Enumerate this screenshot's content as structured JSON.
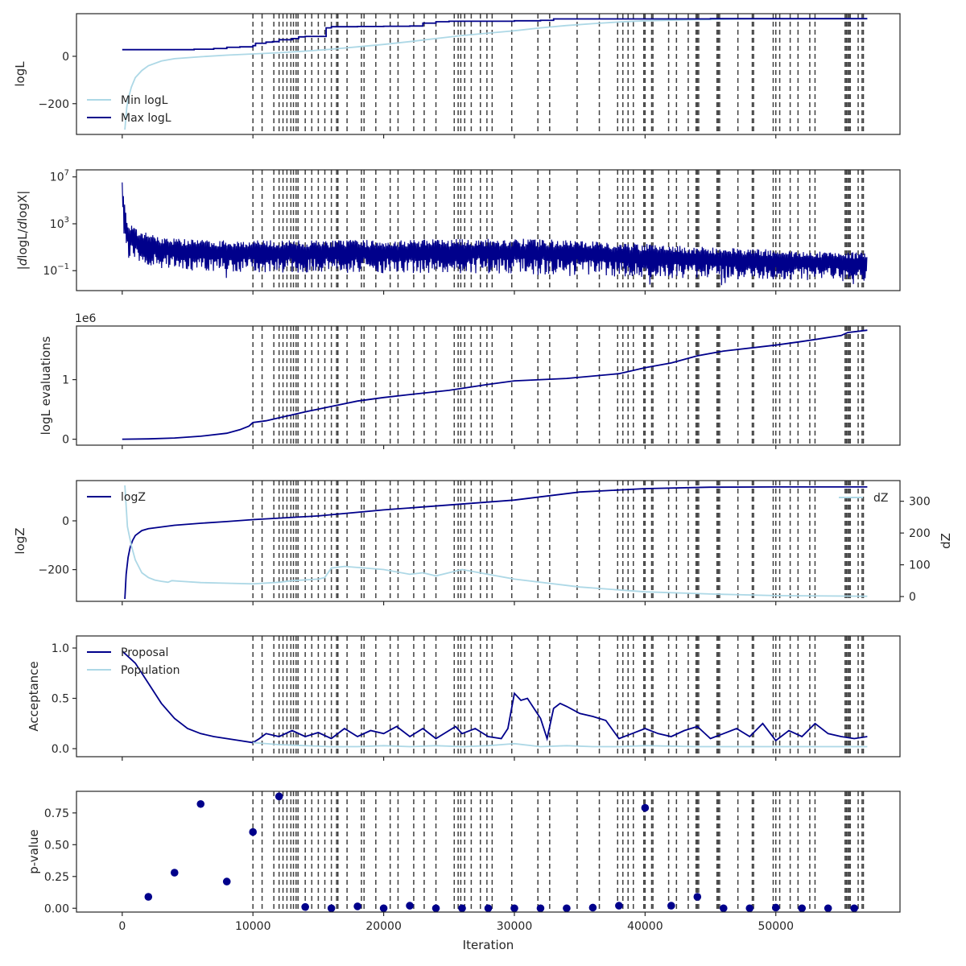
{
  "chart_data": [
    {
      "type": "line",
      "ylabel": "logL",
      "xlim": [
        -3500,
        59500
      ],
      "ylim": [
        -330,
        180
      ],
      "yticks": [
        {
          "v": 0,
          "label": "0"
        },
        {
          "v": -200,
          "label": "−200"
        }
      ],
      "legend": "lower-left",
      "series": [
        {
          "name": "Min logL",
          "color": "#add8e6",
          "x": [
            200,
            350,
            500,
            700,
            1000,
            1500,
            2000,
            3000,
            4000,
            6000,
            8000,
            10000,
            12000,
            14000,
            16000,
            18000,
            20000,
            22000,
            24000,
            26000,
            28000,
            30000,
            32000,
            34000,
            36000,
            38000,
            40000,
            44000,
            48000,
            52000,
            56000,
            57000
          ],
          "y": [
            -310,
            -215,
            -170,
            -130,
            -90,
            -60,
            -40,
            -20,
            -10,
            -2,
            5,
            10,
            15,
            22,
            30,
            40,
            50,
            62,
            75,
            88,
            98,
            108,
            120,
            130,
            138,
            145,
            150,
            155,
            158,
            158,
            159,
            159
          ]
        },
        {
          "name": "Max logL",
          "color": "#00008b",
          "x": [
            0,
            5000,
            5500,
            7000,
            8000,
            9000,
            10000,
            10200,
            11000,
            11500,
            12000,
            13000,
            13500,
            14000,
            15000,
            15600,
            16000,
            18000,
            20000,
            22000,
            23000,
            24000,
            25000,
            30000,
            32000,
            33000,
            40000,
            45000,
            57000
          ],
          "y": [
            28,
            28,
            30,
            33,
            38,
            40,
            45,
            55,
            60,
            62,
            70,
            75,
            82,
            84,
            84,
            120,
            125,
            126,
            127,
            128,
            140,
            146,
            148,
            150,
            152,
            158,
            158,
            159,
            159
          ]
        }
      ]
    },
    {
      "type": "line",
      "ylabel": "|dlogL/dlogX|",
      "ylabel_parts": [
        "|",
        "d",
        "logL",
        "/",
        "d",
        "logX",
        "|"
      ],
      "ylabel_italic": [
        false,
        true,
        false,
        false,
        true,
        false,
        false
      ],
      "yscale": "log",
      "xlim": [
        -3500,
        59500
      ],
      "ylim": [
        -2.7,
        7.6
      ],
      "yticks": [
        {
          "v": 7,
          "label": "10",
          "exp": "7"
        },
        {
          "v": 3,
          "label": "10",
          "exp": "3"
        },
        {
          "v": -1,
          "label": "10",
          "exp": "−1"
        }
      ],
      "series": [
        {
          "name": "",
          "color": "#00008b",
          "envelope": {
            "x": [
              0,
              100,
              200,
              400,
              600,
              1000,
              2000,
              3000,
              5000,
              8000,
              10000,
              15000,
              20000,
              25000,
              30000,
              35000,
              40000,
              45000,
              50000,
              55000,
              57000
            ],
            "upper": [
              7.3,
              6.0,
              4.5,
              3.3,
              3.0,
              2.6,
              2.2,
              1.9,
              1.7,
              1.6,
              1.6,
              1.6,
              1.65,
              1.7,
              1.75,
              1.6,
              1.3,
              1.0,
              0.8,
              0.6,
              0.55
            ],
            "lower": [
              3.5,
              2.5,
              1.5,
              0.5,
              0.0,
              -0.3,
              -0.6,
              -0.8,
              -1.0,
              -1.1,
              -1.2,
              -1.2,
              -1.2,
              -1.2,
              -1.3,
              -1.4,
              -1.6,
              -1.7,
              -1.8,
              -1.9,
              -1.9
            ]
          }
        }
      ]
    },
    {
      "type": "line",
      "ylabel": "logL evaluations",
      "offset_text": "1e6",
      "xlim": [
        -3500,
        59500
      ],
      "ylim": [
        -0.1,
        1.9
      ],
      "yticks": [
        {
          "v": 1,
          "label": "1"
        },
        {
          "v": 0,
          "label": "0"
        }
      ],
      "series": [
        {
          "name": "",
          "color": "#00008b",
          "x": [
            0,
            2000,
            4000,
            6000,
            8000,
            9000,
            9700,
            10000,
            11000,
            12000,
            14000,
            16000,
            18000,
            20000,
            22000,
            25000,
            28000,
            30000,
            34000,
            38000,
            40000,
            42000,
            44000,
            46000,
            50000,
            52000,
            55000,
            55500,
            57000
          ],
          "y": [
            0.0,
            0.005,
            0.02,
            0.05,
            0.1,
            0.16,
            0.22,
            0.28,
            0.31,
            0.36,
            0.46,
            0.55,
            0.64,
            0.7,
            0.75,
            0.82,
            0.92,
            0.98,
            1.02,
            1.1,
            1.2,
            1.28,
            1.4,
            1.48,
            1.58,
            1.64,
            1.74,
            1.79,
            1.83
          ]
        }
      ]
    },
    {
      "type": "line",
      "ylabel": "logZ",
      "ylabel_right": "dZ",
      "xlim": [
        -3500,
        59500
      ],
      "ylim": [
        -330,
        165
      ],
      "ylim_right": [
        -15,
        365
      ],
      "yticks": [
        {
          "v": 0,
          "label": "0"
        },
        {
          "v": -200,
          "label": "−200"
        }
      ],
      "yticks_right": [
        {
          "v": 0,
          "label": "0"
        },
        {
          "v": 100,
          "label": "100"
        },
        {
          "v": 200,
          "label": "200"
        },
        {
          "v": 300,
          "label": "300"
        }
      ],
      "legend": "upper-left",
      "legend_right": "upper-right",
      "series": [
        {
          "name": "logZ",
          "color": "#00008b",
          "axis": "left",
          "x": [
            200,
            300,
            450,
            600,
            800,
            1000,
            1500,
            2000,
            3000,
            4000,
            6000,
            8000,
            10000,
            15000,
            20000,
            25000,
            30000,
            35000,
            40000,
            45000,
            50000,
            57000
          ],
          "y": [
            -320,
            -220,
            -150,
            -110,
            -80,
            -60,
            -40,
            -32,
            -25,
            -18,
            -10,
            -3,
            5,
            20,
            45,
            65,
            85,
            118,
            132,
            138,
            139,
            139
          ]
        },
        {
          "name": "dZ",
          "color": "#add8e6",
          "axis": "right",
          "x": [
            200,
            400,
            700,
            1000,
            1500,
            2000,
            2500,
            3000,
            3500,
            3800,
            4500,
            6000,
            8000,
            10000,
            12000,
            13000,
            15000,
            15500,
            16000,
            17000,
            20000,
            22000,
            23000,
            24000,
            26000,
            30000,
            35000,
            40000,
            45000,
            50000,
            57000
          ],
          "y": [
            350,
            220,
            160,
            115,
            75,
            60,
            52,
            48,
            45,
            50,
            48,
            44,
            42,
            40,
            45,
            50,
            55,
            60,
            90,
            95,
            85,
            70,
            75,
            65,
            85,
            55,
            30,
            15,
            8,
            3,
            1
          ]
        }
      ]
    },
    {
      "type": "line",
      "ylabel": "Acceptance",
      "xlim": [
        -3500,
        59500
      ],
      "ylim": [
        -0.08,
        1.12
      ],
      "yticks": [
        {
          "v": 1.0,
          "label": "1.0"
        },
        {
          "v": 0.5,
          "label": "0.5"
        },
        {
          "v": 0.0,
          "label": "0.0"
        }
      ],
      "legend": "upper-left",
      "series": [
        {
          "name": "Proposal",
          "color": "#00008b",
          "x": [
            0,
            1000,
            2000,
            3000,
            4000,
            5000,
            6000,
            7000,
            8000,
            9000,
            10000,
            10500,
            11000,
            12000,
            13000,
            14000,
            15000,
            16000,
            17000,
            18000,
            19000,
            20000,
            21000,
            22000,
            23000,
            24000,
            25000,
            25500,
            26000,
            27000,
            28000,
            29000,
            29500,
            30000,
            30500,
            31000,
            32000,
            32500,
            33000,
            33500,
            34000,
            35000,
            36000,
            37000,
            38000,
            39000,
            40000,
            41000,
            42000,
            43000,
            44000,
            45000,
            46000,
            47000,
            48000,
            49000,
            50000,
            51000,
            52000,
            53000,
            54000,
            55000,
            56000,
            57000
          ],
          "y": [
            0.97,
            0.85,
            0.65,
            0.45,
            0.3,
            0.2,
            0.15,
            0.12,
            0.1,
            0.08,
            0.06,
            0.1,
            0.15,
            0.12,
            0.18,
            0.12,
            0.16,
            0.1,
            0.2,
            0.12,
            0.18,
            0.15,
            0.22,
            0.12,
            0.2,
            0.1,
            0.18,
            0.22,
            0.15,
            0.2,
            0.12,
            0.1,
            0.2,
            0.55,
            0.48,
            0.5,
            0.3,
            0.1,
            0.4,
            0.45,
            0.42,
            0.35,
            0.32,
            0.28,
            0.1,
            0.15,
            0.2,
            0.15,
            0.12,
            0.18,
            0.22,
            0.1,
            0.15,
            0.2,
            0.12,
            0.25,
            0.08,
            0.18,
            0.12,
            0.25,
            0.15,
            0.12,
            0.1,
            0.12
          ]
        },
        {
          "name": "Population",
          "color": "#add8e6",
          "x": [
            10000,
            12000,
            14000,
            16000,
            18000,
            20000,
            22000,
            24000,
            26000,
            28000,
            30000,
            32000,
            34000,
            36000,
            38000,
            40000,
            44000,
            48000,
            52000,
            56000,
            57000
          ],
          "y": [
            0.06,
            0.04,
            0.03,
            0.02,
            0.02,
            0.03,
            0.02,
            0.03,
            0.02,
            0.03,
            0.05,
            0.02,
            0.03,
            0.02,
            0.02,
            0.03,
            0.02,
            0.02,
            0.02,
            0.02,
            0.02
          ]
        }
      ]
    },
    {
      "type": "scatter",
      "ylabel": "p-value",
      "xlabel": "Iteration",
      "xlim": [
        -3500,
        59500
      ],
      "ylim": [
        -0.03,
        0.92
      ],
      "yticks": [
        {
          "v": 0.75,
          "label": "0.75"
        },
        {
          "v": 0.5,
          "label": "0.50"
        },
        {
          "v": 0.25,
          "label": "0.25"
        },
        {
          "v": 0.0,
          "label": "0.00"
        }
      ],
      "xticks": [
        {
          "v": 0,
          "label": "0"
        },
        {
          "v": 10000,
          "label": "10000"
        },
        {
          "v": 20000,
          "label": "20000"
        },
        {
          "v": 30000,
          "label": "30000"
        },
        {
          "v": 40000,
          "label": "40000"
        },
        {
          "v": 50000,
          "label": "50000"
        }
      ],
      "series": [
        {
          "name": "",
          "color": "#00008b",
          "x": [
            2000,
            4000,
            6000,
            8000,
            10000,
            12000,
            14000,
            16000,
            18000,
            20000,
            22000,
            24000,
            26000,
            28000,
            30000,
            32000,
            34000,
            36000,
            38000,
            40000,
            42000,
            44000,
            46000,
            48000,
            50000,
            52000,
            54000,
            56000
          ],
          "y": [
            0.09,
            0.28,
            0.82,
            0.21,
            0.6,
            0.88,
            0.01,
            0.0,
            0.015,
            0.0,
            0.02,
            0.0,
            0.0,
            0.0,
            0.0,
            0.0,
            0.0,
            0.005,
            0.02,
            0.79,
            0.02,
            0.09,
            0.0,
            0.0,
            0.005,
            0.0,
            0.0,
            0.0
          ]
        }
      ]
    }
  ],
  "vertical_lines": {
    "color": "#404040",
    "style": "dashed",
    "x": [
      10000,
      10700,
      11600,
      12000,
      12300,
      12600,
      12900,
      13100,
      13300,
      13450,
      14000,
      14500,
      15000,
      15500,
      16000,
      16400,
      16500,
      17200,
      18300,
      18500,
      19400,
      20500,
      21100,
      22300,
      23100,
      24000,
      25400,
      25700,
      25900,
      26200,
      26700,
      27400,
      27900,
      28300,
      29800,
      31800,
      32700,
      34800,
      36500,
      37900,
      38300,
      38700,
      39100,
      39900,
      40000,
      40500,
      40600,
      41800,
      42400,
      43300,
      43900,
      44000,
      44100,
      45500,
      45600,
      45700,
      47100,
      48200,
      48300,
      49800,
      50000,
      50300,
      51100,
      51700,
      52600,
      53000,
      55300,
      55400,
      55500,
      55600,
      55700,
      56300,
      56600,
      56700
    ]
  }
}
